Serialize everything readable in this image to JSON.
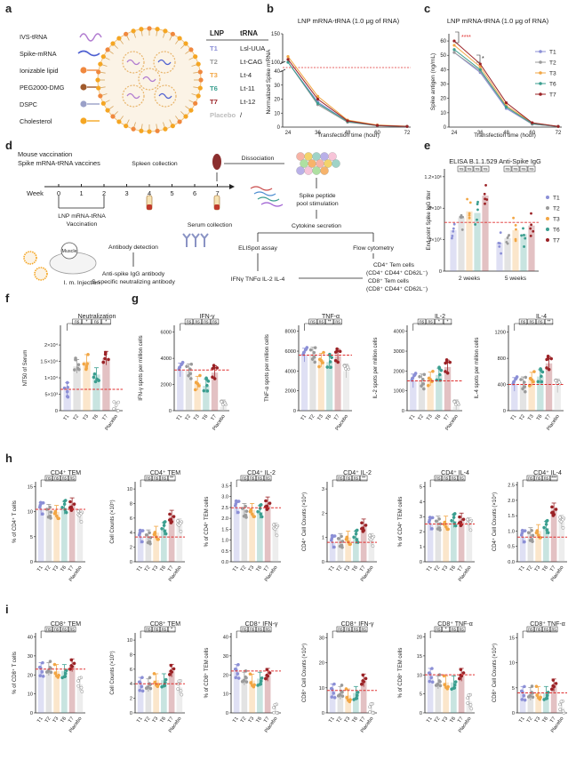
{
  "colors": {
    "T1": "#8b8fd6",
    "T2": "#9a9a9a",
    "T3": "#f2a644",
    "T6": "#3a9e8f",
    "T7": "#9b2226",
    "Placebo": "#bdbdbd",
    "ref": "#e03030",
    "ink": "#222222"
  },
  "panel_letters": [
    "a",
    "b",
    "c",
    "d",
    "e",
    "f",
    "g",
    "h",
    "i"
  ],
  "panel_a": {
    "components": [
      "IVS-tRNA",
      "Spike-mRNA",
      "Ionizable lipid",
      "PEG2000-DMG",
      "DSPC",
      "Cholesterol"
    ],
    "table_headers": [
      "LNP",
      "tRNA"
    ],
    "table_rows": [
      [
        "T1",
        "Lsl-UUA"
      ],
      [
        "T2",
        "Lt-CAG"
      ],
      [
        "T3",
        "Lt-4"
      ],
      [
        "T6",
        "Lt-11"
      ],
      [
        "T7",
        "Lt-12"
      ],
      [
        "Placebo",
        "/"
      ]
    ]
  },
  "panel_d": {
    "line1": "Mouse vaccination",
    "line2": "Spike mRNA-tRNA vaccines",
    "week_label": "Week",
    "weeks": [
      "0",
      "1",
      "2",
      "3",
      "4",
      "5",
      "6",
      "7"
    ],
    "spleen": "Spleen collection",
    "dissociation": "Dissociation",
    "peptide1": "Spike peptide",
    "peptide2": "pool stimulation",
    "serum": "Serum collection",
    "lnp1": "LNP mRNA-tRNA",
    "lnp2": "Vaccination",
    "cytokine": "Cytokine secretion",
    "antibody": "Antibody detection",
    "elispot": "ELISpot assay",
    "flow": "Flow cytometry",
    "muscle": "Muscle",
    "im": "I. m. Injection",
    "antispike1": "Anti-spike IgG antibody",
    "antispike2": "S-specific neutralizing antibody",
    "cyto_list": "IFNγ TNFα IL-2 IL-4",
    "tem1": "CD4⁺ Tem cells",
    "tem2": "(CD4⁺ CD44⁺ CD62L⁻)",
    "tem3": "CD8⁺ Tem cells",
    "tem4": "(CD8⁺ CD44⁺ CD62L⁻)"
  },
  "legend_groups": [
    "T1",
    "T2",
    "T3",
    "T6",
    "T7"
  ],
  "chart_data": [
    {
      "id": "b",
      "type": "line",
      "title": "LNP mRNA-tRNA (1.0 μg of RNA)",
      "xlabel": "Transfection time (hour)",
      "ylabel": "Normalized Spike mRNA",
      "x": [
        24,
        36,
        48,
        60,
        72
      ],
      "x_ticks": [
        "24",
        "36",
        "48",
        "60",
        "72"
      ],
      "y_ticks_top": [
        "100",
        "150"
      ],
      "y_ticks_bottom": [
        "0",
        "10",
        "20",
        "30",
        "40"
      ],
      "y_break": [
        50,
        100
      ],
      "ref_line": 50,
      "series": [
        {
          "name": "T1",
          "values": [
            100,
            18,
            4,
            1,
            0.5
          ]
        },
        {
          "name": "T2",
          "values": [
            100,
            16,
            3.5,
            1,
            0.5
          ]
        },
        {
          "name": "T3",
          "values": [
            110,
            22,
            5,
            1.5,
            0.6
          ]
        },
        {
          "name": "T6",
          "values": [
            100,
            17,
            4,
            1,
            0.5
          ]
        },
        {
          "name": "T7",
          "values": [
            105,
            20,
            4.5,
            1.2,
            0.5
          ]
        }
      ]
    },
    {
      "id": "c",
      "type": "line",
      "title": "LNP mRNA-tRNA (1.0 μg of RNA)",
      "xlabel": "Transfection time (hour)",
      "ylabel": "Spike antigen (ng/mL)",
      "x": [
        24,
        36,
        48,
        60,
        72
      ],
      "x_ticks": [
        "24",
        "36",
        "48",
        "60",
        "72"
      ],
      "y_ticks": [
        "0",
        "10",
        "20",
        "30",
        "40",
        "50",
        "60"
      ],
      "ylim": [
        0,
        65
      ],
      "sig": [
        "****",
        "*"
      ],
      "legend": [
        "T1",
        "T2",
        "T3",
        "T6",
        "T7"
      ],
      "series": [
        {
          "name": "T1",
          "values": [
            52,
            38,
            13,
            2,
            0.5
          ]
        },
        {
          "name": "T2",
          "values": [
            52,
            39,
            14,
            2,
            0.5
          ]
        },
        {
          "name": "T3",
          "values": [
            57,
            42,
            15,
            3,
            0.5
          ]
        },
        {
          "name": "T6",
          "values": [
            54,
            40,
            14,
            2.5,
            0.5
          ]
        },
        {
          "name": "T7",
          "values": [
            60,
            44,
            17,
            3,
            0.5
          ]
        }
      ]
    },
    {
      "id": "e",
      "type": "bar",
      "title": "ELISA B.1.1.529 Anti-Spike IgG",
      "ylabel": "End point Spike IgG titer",
      "groups": [
        "2 weeks",
        "5 weeks"
      ],
      "categories": [
        "T1",
        "T2",
        "T3",
        "T6",
        "T7"
      ],
      "y_ticks": [
        "0",
        "4×10⁵",
        "8×10⁵",
        "1.2×10⁶"
      ],
      "ylim": [
        0,
        1300000
      ],
      "ref_line": 620000,
      "series": [
        {
          "name": "2 weeks",
          "values": [
            520000,
            680000,
            760000,
            740000,
            960000
          ]
        },
        {
          "name": "5 weeks",
          "values": [
            360000,
            420000,
            520000,
            470000,
            580000
          ]
        }
      ],
      "sig": [
        [
          "ns",
          "ns",
          "ns",
          "ns"
        ],
        [
          "ns",
          "ns",
          "ns",
          "ns"
        ]
      ]
    },
    {
      "id": "f",
      "type": "bar",
      "title": "Neutralization",
      "ylabel": "NT50 of Serum",
      "categories": [
        "T1",
        "T2",
        "T3",
        "T6",
        "T7",
        "Placebo"
      ],
      "values": [
        6500,
        13500,
        15000,
        11000,
        16000,
        500
      ],
      "y_ticks": [
        "0",
        "5×10³",
        "1×10⁴",
        "1.5×10⁴",
        "2×10⁴"
      ],
      "ylim": [
        0,
        26000
      ],
      "ref_line": 6500,
      "sig": [
        "ns",
        "*",
        "ns",
        "*"
      ]
    },
    {
      "id": "g1",
      "type": "bar",
      "title": "IFN-γ",
      "ylabel": "IFN-γ spots per million cells",
      "categories": [
        "T1",
        "T2",
        "T3",
        "T6",
        "T7",
        "Placebo"
      ],
      "values": [
        3100,
        3050,
        2100,
        1900,
        2900,
        300
      ],
      "y_ticks": [
        "0",
        "2000",
        "4000",
        "6000"
      ],
      "ylim": [
        0,
        6500
      ],
      "ref_line": 3100,
      "sig": [
        "ns",
        "ns",
        "ns",
        "ns"
      ]
    },
    {
      "id": "g2",
      "type": "bar",
      "title": "TNF-α",
      "ylabel": "TNF-α spots per million cells",
      "categories": [
        "T1",
        "T2",
        "T3",
        "T6",
        "T7",
        "Placebo"
      ],
      "values": [
        5600,
        5700,
        5100,
        4900,
        5500,
        4000
      ],
      "y_ticks": [
        "0",
        "2000",
        "4000",
        "6000",
        "8000"
      ],
      "ylim": [
        0,
        8600
      ],
      "ref_line": 5600,
      "sig": [
        "ns",
        "ns",
        "**",
        "ns"
      ]
    },
    {
      "id": "g3",
      "type": "bar",
      "title": "IL-2",
      "ylabel": "IL-2 spots per million cells",
      "categories": [
        "T1",
        "T2",
        "T3",
        "T6",
        "T7",
        "Placebo"
      ],
      "values": [
        1500,
        1500,
        1600,
        1800,
        2200,
        200
      ],
      "y_ticks": [
        "0",
        "1000",
        "2000",
        "3000",
        "4000"
      ],
      "ylim": [
        0,
        4300
      ],
      "ref_line": 1500,
      "sig": [
        "ns",
        "ns",
        "*",
        "*"
      ]
    },
    {
      "id": "g4",
      "type": "bar",
      "title": "IL-4",
      "ylabel": "IL-4 spots per million cells",
      "categories": [
        "T1",
        "T2",
        "T3",
        "T6",
        "T7",
        "Placebo"
      ],
      "values": [
        400,
        410,
        480,
        520,
        720,
        380
      ],
      "y_ticks": [
        "0",
        "400",
        "800",
        "1200"
      ],
      "ylim": [
        0,
        1300
      ],
      "ref_line": 400,
      "sig": [
        "ns",
        "ns",
        "ns",
        "**"
      ]
    },
    {
      "id": "h1",
      "type": "bar",
      "title": "CD4⁺ TEM",
      "ylabel": "% of CD4⁺ T cells",
      "categories": [
        "T1",
        "T2",
        "T3",
        "T6",
        "T7",
        "Placebo"
      ],
      "values": [
        10.5,
        10.2,
        10.0,
        10.8,
        11.5,
        9.2
      ],
      "y_ticks": [
        "0",
        "5",
        "10",
        "15"
      ],
      "ylim": [
        0,
        16
      ],
      "ref_line": 10.5,
      "sig": [
        "ns",
        "ns",
        "ns",
        "ns"
      ]
    },
    {
      "id": "h2",
      "type": "bar",
      "title": "CD4⁺ TEM",
      "ylabel": "Cell Counts (×10⁵)",
      "categories": [
        "T1",
        "T2",
        "T3",
        "T6",
        "T7",
        "Placebo"
      ],
      "values": [
        3.4,
        3.5,
        4.0,
        4.5,
        6.2,
        5.0
      ],
      "y_ticks": [
        "0",
        "2",
        "4",
        "6",
        "8",
        "10"
      ],
      "ylim": [
        0,
        11
      ],
      "ref_line": 3.4,
      "sig": [
        "ns",
        "ns",
        "ns",
        "**"
      ]
    },
    {
      "id": "h3",
      "type": "bar",
      "title": "CD4⁺ IL-2",
      "ylabel": "% of CD4⁺ TEM cells",
      "categories": [
        "T1",
        "T2",
        "T3",
        "T6",
        "T7",
        "Placebo"
      ],
      "values": [
        2.5,
        2.4,
        2.4,
        2.3,
        2.7,
        1.5
      ],
      "y_ticks": [
        "0.0",
        "0.5",
        "1.0",
        "1.5",
        "2.0",
        "2.5",
        "3.0",
        "3.5"
      ],
      "ylim": [
        0,
        3.7
      ],
      "ref_line": 2.5,
      "sig": [
        "ns",
        "ns",
        "ns",
        "ns"
      ]
    },
    {
      "id": "h4",
      "type": "bar",
      "title": "CD4⁺ IL-2",
      "ylabel": "CD4⁺ Cell Counts (×10⁴)",
      "categories": [
        "T1",
        "T2",
        "T3",
        "T6",
        "T7",
        "Placebo"
      ],
      "values": [
        0.8,
        0.9,
        1.0,
        1.0,
        1.5,
        0.9
      ],
      "y_ticks": [
        "0",
        "1",
        "2",
        "3"
      ],
      "ylim": [
        0,
        3.3
      ],
      "ref_line": 0.8,
      "sig": [
        "ns",
        "ns",
        "ns",
        "**"
      ]
    },
    {
      "id": "h5",
      "type": "bar",
      "title": "CD4⁺ IL-4",
      "ylabel": "% of CD4⁺ TEM cells",
      "categories": [
        "T1",
        "T2",
        "T3",
        "T6",
        "T7",
        "Placebo"
      ],
      "values": [
        2.5,
        2.6,
        2.6,
        2.7,
        2.8,
        2.5
      ],
      "y_ticks": [
        "0",
        "1",
        "2",
        "3",
        "4",
        "5"
      ],
      "ylim": [
        0,
        5.3
      ],
      "ref_line": 2.5,
      "sig": [
        "ns",
        "ns",
        "ns",
        "ns"
      ]
    },
    {
      "id": "h6",
      "type": "bar",
      "title": "CD4⁺ IL-4",
      "ylabel": "CD4⁺ Cell Counts (×10⁴)",
      "categories": [
        "T1",
        "T2",
        "T3",
        "T6",
        "T7",
        "Placebo"
      ],
      "values": [
        0.8,
        0.9,
        1.0,
        1.1,
        1.7,
        1.3
      ],
      "y_ticks": [
        "0.0",
        "0.5",
        "1.0",
        "1.5",
        "2.0",
        "2.5"
      ],
      "ylim": [
        0,
        2.6
      ],
      "ref_line": 0.8,
      "sig": [
        "ns",
        "ns",
        "ns",
        "***"
      ]
    },
    {
      "id": "i1",
      "type": "bar",
      "title": "CD8⁺ TEM",
      "ylabel": "% of CD8⁺ T cells",
      "categories": [
        "T1",
        "T2",
        "T3",
        "T6",
        "T7",
        "Placebo"
      ],
      "values": [
        23,
        23,
        22,
        22,
        25,
        15
      ],
      "y_ticks": [
        "0",
        "10",
        "20",
        "30",
        "40"
      ],
      "ylim": [
        0,
        42
      ],
      "ref_line": 23,
      "sig": [
        "ns",
        "ns",
        "ns",
        "ns"
      ]
    },
    {
      "id": "i2",
      "type": "bar",
      "title": "CD8⁺ TEM",
      "ylabel": "Cell Counts (×10⁵)",
      "categories": [
        "T1",
        "T2",
        "T3",
        "T6",
        "T7",
        "Placebo"
      ],
      "values": [
        4.0,
        3.8,
        4.5,
        4.5,
        5.8,
        3.5
      ],
      "y_ticks": [
        "0",
        "2",
        "4",
        "6",
        "8",
        "10"
      ],
      "ylim": [
        0,
        11
      ],
      "ref_line": 4.0,
      "sig": [
        "ns",
        "ns",
        "ns",
        "*"
      ]
    },
    {
      "id": "i3",
      "type": "bar",
      "title": "CD8⁺ IFN-γ",
      "ylabel": "% of CD8⁺ TEM cells",
      "categories": [
        "T1",
        "T2",
        "T3",
        "T6",
        "T7",
        "Placebo"
      ],
      "values": [
        22,
        18,
        17,
        18,
        20,
        1
      ],
      "y_ticks": [
        "0",
        "10",
        "20",
        "30",
        "40"
      ],
      "ylim": [
        0,
        42
      ],
      "ref_line": 22,
      "sig": [
        "ns",
        "ns",
        "ns",
        "ns"
      ]
    },
    {
      "id": "i4",
      "type": "bar",
      "title": "CD8⁺ IFN-γ",
      "ylabel": "CD8⁺ Cell Counts (×10⁴)",
      "categories": [
        "T1",
        "T2",
        "T3",
        "T6",
        "T7",
        "Placebo"
      ],
      "values": [
        9,
        8,
        7,
        8,
        13,
        1
      ],
      "y_ticks": [
        "0",
        "10",
        "20",
        "30"
      ],
      "ylim": [
        0,
        32
      ],
      "ref_line": 9,
      "sig": [
        "ns",
        "ns",
        "ns",
        "ns"
      ]
    },
    {
      "id": "i5",
      "type": "bar",
      "title": "CD8⁺ TNF-α",
      "ylabel": "% of CD8⁺ TEM cells",
      "categories": [
        "T1",
        "T2",
        "T3",
        "T6",
        "T7",
        "Placebo"
      ],
      "values": [
        10,
        8,
        8,
        8,
        10,
        3
      ],
      "y_ticks": [
        "0",
        "5",
        "10",
        "15",
        "20"
      ],
      "ylim": [
        0,
        21
      ],
      "ref_line": 10,
      "sig": [
        "ns",
        "*",
        "ns",
        "ns"
      ]
    },
    {
      "id": "i6",
      "type": "bar",
      "title": "CD8⁺ TNF-α",
      "ylabel": "CD8⁺ Cell Counts (×10⁴)",
      "categories": [
        "T1",
        "T2",
        "T3",
        "T6",
        "T7",
        "Placebo"
      ],
      "values": [
        4,
        3.8,
        4,
        4,
        5.5,
        1
      ],
      "y_ticks": [
        "0",
        "5",
        "10",
        "15"
      ],
      "ylim": [
        0,
        16
      ],
      "ref_line": 4,
      "sig": [
        "ns",
        "ns",
        "ns",
        "ns"
      ]
    }
  ]
}
